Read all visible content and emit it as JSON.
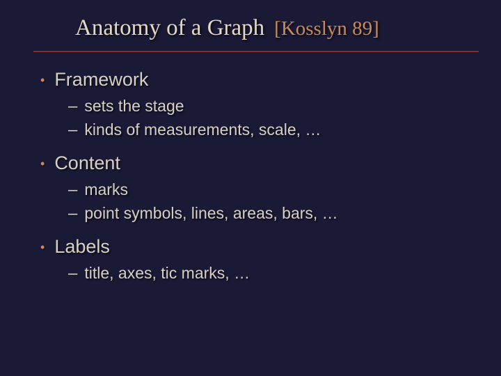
{
  "colors": {
    "background": "#1b1a36",
    "title": "#e4d9c2",
    "reference": "#c88a5a",
    "divider": "#8a2a2a",
    "body_text": "#d6d0c4",
    "bullet_dot": "#c88a5a"
  },
  "title": {
    "main": "Anatomy of a Graph",
    "reference": "[Kosslyn 89]",
    "main_fontsize_pt": 33,
    "ref_fontsize_pt": 29,
    "font_family": "Times New Roman"
  },
  "body": {
    "l1_fontsize_pt": 27,
    "l2_fontsize_pt": 23,
    "font_family": "Arial"
  },
  "items": [
    {
      "label": "Framework",
      "sub": [
        "sets the stage",
        "kinds of measurements, scale, …"
      ]
    },
    {
      "label": "Content",
      "sub": [
        "marks",
        "point symbols, lines, areas, bars, …"
      ]
    },
    {
      "label": "Labels",
      "sub": [
        "title, axes, tic marks, …"
      ]
    }
  ]
}
